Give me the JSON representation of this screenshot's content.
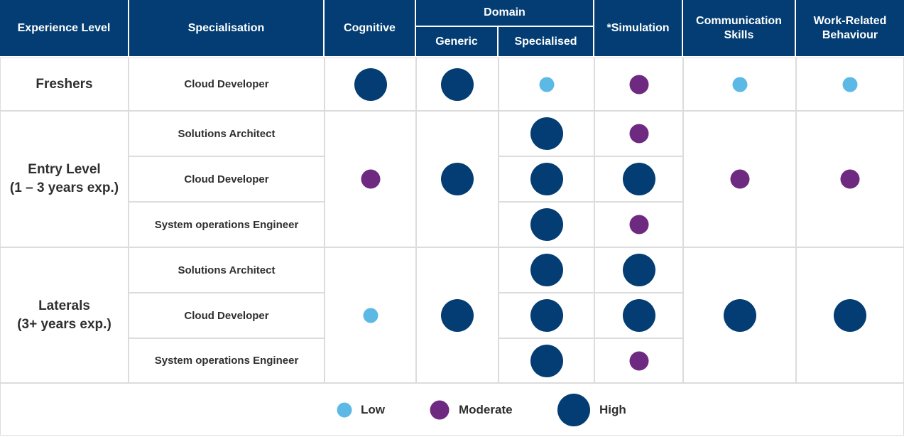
{
  "headers": {
    "experience_level": "Experience Level",
    "specialisation": "Specialisation",
    "cognitive": "Cognitive",
    "domain": "Domain",
    "generic": "Generic",
    "specialised": "Specialised",
    "simulation": "*Simulation",
    "communication_skills": "Communication Skills",
    "work_related_behaviour": "Work-Related Behaviour"
  },
  "groups": [
    {
      "experience": "Freshers",
      "experience_sub": "",
      "cognitive": "high",
      "generic": "high",
      "communication_skills": "low",
      "work_related_behaviour": "low",
      "rows": [
        {
          "specialisation": "Cloud Developer",
          "specialised": "low",
          "simulation": "moderate"
        }
      ]
    },
    {
      "experience": "Entry Level",
      "experience_sub": "(1 – 3 years exp.)",
      "cognitive": "moderate",
      "generic": "high",
      "communication_skills": "moderate",
      "work_related_behaviour": "moderate",
      "rows": [
        {
          "specialisation": "Solutions Architect",
          "specialised": "high",
          "simulation": "moderate"
        },
        {
          "specialisation": "Cloud Developer",
          "specialised": "high",
          "simulation": "high"
        },
        {
          "specialisation": "System operations Engineer",
          "specialised": "high",
          "simulation": "moderate"
        }
      ]
    },
    {
      "experience": "Laterals",
      "experience_sub": "(3+ years exp.)",
      "cognitive": "low",
      "generic": "high",
      "communication_skills": "high",
      "work_related_behaviour": "high",
      "rows": [
        {
          "specialisation": "Solutions Architect",
          "specialised": "high",
          "simulation": "high"
        },
        {
          "specialisation": "Cloud Developer",
          "specialised": "high",
          "simulation": "high"
        },
        {
          "specialisation": "System operations Engineer",
          "specialised": "high",
          "simulation": "moderate"
        }
      ]
    }
  ],
  "legend": [
    {
      "level": "low",
      "label": "Low"
    },
    {
      "level": "moderate",
      "label": "Moderate"
    },
    {
      "level": "high",
      "label": "High"
    }
  ],
  "colors": {
    "header": "#033d73",
    "low": "#5cb9e6",
    "moderate": "#6e2a80",
    "high": "#033d73"
  }
}
